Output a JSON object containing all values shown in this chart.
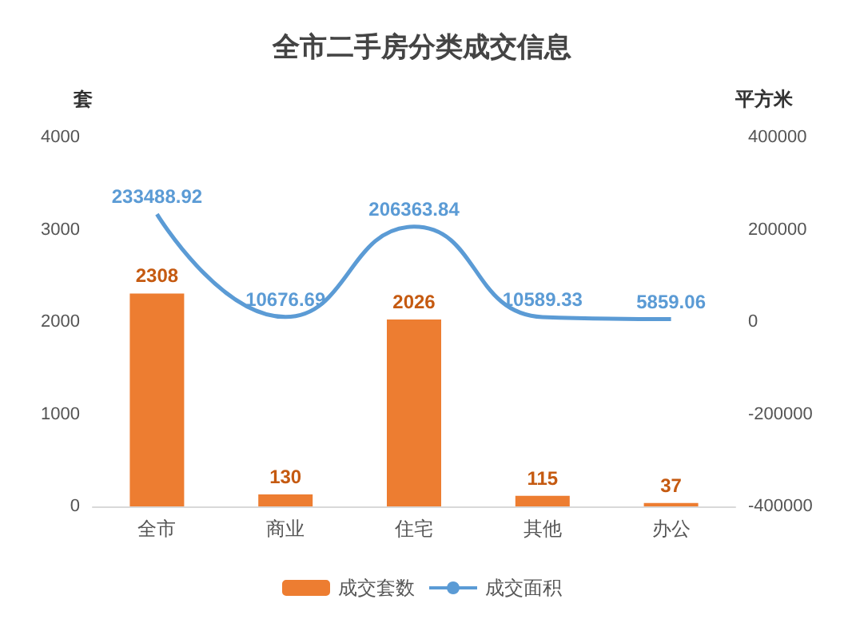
{
  "chart_data": {
    "type": "bar",
    "title": "全市二手房分类成交信息",
    "ylabel": "套",
    "y2label": "平方米",
    "categories": [
      "全市",
      "商业",
      "住宅",
      "其他",
      "办公"
    ],
    "series": [
      {
        "name": "成交套数",
        "color": "#ed7d31",
        "values": [
          2308,
          130,
          2026,
          115,
          37
        ]
      },
      {
        "name": "成交面积",
        "type": "line",
        "axis": "y2",
        "color": "#5b9bd5",
        "values": [
          233488.92,
          10676.69,
          206363.84,
          10589.33,
          5859.06
        ]
      }
    ],
    "ylim": [
      0,
      4000
    ],
    "yticks": [
      0,
      1000,
      2000,
      3000,
      4000
    ],
    "y2lim": [
      -400000,
      400000
    ],
    "y2ticks": [
      -400000,
      -200000,
      0,
      200000,
      400000
    ],
    "data_labels": true,
    "legend": "bottom",
    "grid": false,
    "marker": "none",
    "line_style": "solid"
  }
}
